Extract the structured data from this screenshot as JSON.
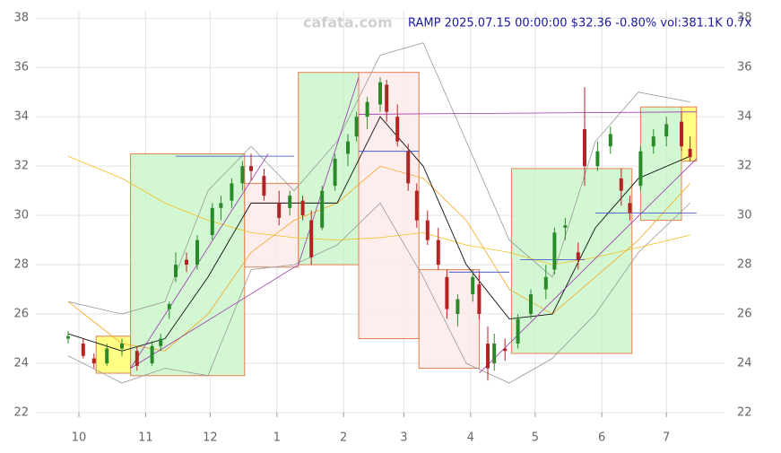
{
  "chart_data": {
    "type": "candlestick",
    "title": "RAMP 2025.07.15 00:00:00 $32.36 -0.80% vol:381.1K 0.7x",
    "watermark": "cafata.com",
    "xlim": [
      -20,
      300
    ],
    "xticks": [
      {
        "value": 0,
        "label": "10"
      },
      {
        "value": 31,
        "label": "11"
      },
      {
        "value": 61,
        "label": "12"
      },
      {
        "value": 92,
        "label": "1"
      },
      {
        "value": 123,
        "label": "2"
      },
      {
        "value": 151,
        "label": "3"
      },
      {
        "value": 182,
        "label": "4"
      },
      {
        "value": 212,
        "label": "5"
      },
      {
        "value": 243,
        "label": "6"
      },
      {
        "value": 273,
        "label": "7"
      }
    ],
    "ylim": [
      22,
      38.3
    ],
    "yticks": [
      22,
      24,
      26,
      28,
      30,
      32,
      34,
      36,
      38
    ],
    "grid": true,
    "up_color": "#2a8a2a",
    "down_color": "#b52222",
    "candles": {
      "x": [
        -5,
        2,
        7,
        13,
        20,
        27,
        34,
        38,
        42,
        45,
        50,
        55,
        62,
        66,
        71,
        76,
        80,
        86,
        93,
        98,
        104,
        108,
        113,
        119,
        125,
        129,
        134,
        140,
        143,
        148,
        153,
        157,
        162,
        167,
        171,
        176,
        183,
        186,
        190,
        193,
        198,
        204,
        210,
        217,
        221,
        226,
        232,
        235,
        241,
        247,
        252,
        256,
        261,
        267,
        273,
        280,
        284
      ],
      "open": [
        25.0,
        24.8,
        24.2,
        24.0,
        24.6,
        24.5,
        24.0,
        24.7,
        26.2,
        27.5,
        28.2,
        28.0,
        29.2,
        30.3,
        30.6,
        31.3,
        32.0,
        31.6,
        30.5,
        30.3,
        30.6,
        29.8,
        29.5,
        31.2,
        32.5,
        33.2,
        34.0,
        34.5,
        35.3,
        34.0,
        32.6,
        31.0,
        29.8,
        29.0,
        27.5,
        26.0,
        26.8,
        27.2,
        24.8,
        24.0,
        24.6,
        24.8,
        26.0,
        27.0,
        27.8,
        29.5,
        28.5,
        33.5,
        32.0,
        32.8,
        31.5,
        30.5,
        31.2,
        32.8,
        33.2,
        33.8,
        32.7
      ],
      "high": [
        25.3,
        25.0,
        24.4,
        24.8,
        25.0,
        24.7,
        24.9,
        25.2,
        26.5,
        28.5,
        28.5,
        29.2,
        30.5,
        30.8,
        31.5,
        32.2,
        32.5,
        31.9,
        31.0,
        31.0,
        30.8,
        30.2,
        31.2,
        32.5,
        33.3,
        34.2,
        34.8,
        35.6,
        35.5,
        34.5,
        32.9,
        31.3,
        30.2,
        29.5,
        27.8,
        26.8,
        27.8,
        27.6,
        25.5,
        25.2,
        25.0,
        26.0,
        27.0,
        28.0,
        29.5,
        29.9,
        28.9,
        35.2,
        33.0,
        33.6,
        31.9,
        30.8,
        32.8,
        33.5,
        34.0,
        34.2,
        33.2
      ],
      "low": [
        24.8,
        24.2,
        23.8,
        23.9,
        24.3,
        23.7,
        23.9,
        24.5,
        25.8,
        27.3,
        27.7,
        27.8,
        29.0,
        29.8,
        30.3,
        31.0,
        31.4,
        30.6,
        29.6,
        30.0,
        29.8,
        28.0,
        29.4,
        31.0,
        32.0,
        33.0,
        33.5,
        34.2,
        33.8,
        32.8,
        31.0,
        29.5,
        28.8,
        27.8,
        25.8,
        25.5,
        26.5,
        25.8,
        23.3,
        23.7,
        24.1,
        24.6,
        25.8,
        26.6,
        27.6,
        29.0,
        27.8,
        31.2,
        31.8,
        32.5,
        30.4,
        29.8,
        31.0,
        32.5,
        32.8,
        32.6,
        32.2
      ],
      "close": [
        25.1,
        24.3,
        24.0,
        24.6,
        24.8,
        23.9,
        24.7,
        25.0,
        26.4,
        28.0,
        28.0,
        29.0,
        30.3,
        30.5,
        31.3,
        32.0,
        31.8,
        30.8,
        29.9,
        30.8,
        30.0,
        28.3,
        31.0,
        32.3,
        33.0,
        34.0,
        34.6,
        35.4,
        34.2,
        33.0,
        31.3,
        29.8,
        29.0,
        28.0,
        26.2,
        26.6,
        27.5,
        26.0,
        23.8,
        24.8,
        24.5,
        25.8,
        26.8,
        27.5,
        29.3,
        29.6,
        28.2,
        32.0,
        32.6,
        33.3,
        31.0,
        30.1,
        32.6,
        33.2,
        33.7,
        32.8,
        32.36
      ]
    },
    "overlay_x": [
      -5,
      20,
      40,
      60,
      80,
      100,
      120,
      140,
      160,
      180,
      200,
      220,
      240,
      260,
      284
    ],
    "overlays": [
      {
        "color": "#999999",
        "values": [
          26.5,
          26.0,
          26.5,
          31.0,
          32.8,
          31.0,
          33.0,
          36.5,
          37.0,
          33.0,
          29.0,
          27.5,
          33.0,
          35.0,
          34.6
        ]
      },
      {
        "color": "#999999",
        "values": [
          24.3,
          23.2,
          23.8,
          23.5,
          27.8,
          28.0,
          28.8,
          30.5,
          27.5,
          24.0,
          23.2,
          24.2,
          26.0,
          28.5,
          30.5
        ]
      },
      {
        "color": "#f0c020",
        "values": [
          32.4,
          31.5,
          30.5,
          29.8,
          29.3,
          29.1,
          29.0,
          29.1,
          29.3,
          28.8,
          28.5,
          28.0,
          28.3,
          28.7,
          29.2
        ]
      },
      {
        "color": "#f5a623",
        "values": [
          26.5,
          24.8,
          24.5,
          26.0,
          28.5,
          29.8,
          30.5,
          32.0,
          31.5,
          29.8,
          27.0,
          26.0,
          27.5,
          29.0,
          31.3
        ]
      },
      {
        "color": "#111111",
        "values": [
          25.2,
          24.5,
          25.0,
          27.5,
          30.5,
          30.5,
          30.5,
          34.0,
          32.0,
          28.0,
          25.8,
          26.0,
          29.5,
          31.5,
          32.4
        ]
      }
    ],
    "boxes": [
      {
        "x0": 8,
        "x1": 24,
        "y0": 23.6,
        "y1": 25.1,
        "color": "#ffff66"
      },
      {
        "x0": 24,
        "x1": 77,
        "y0": 23.5,
        "y1": 32.5,
        "color": "#c8f5c8"
      },
      {
        "x0": 77,
        "x1": 102,
        "y0": 27.9,
        "y1": 31.3,
        "color": "#fde8e8"
      },
      {
        "x0": 102,
        "x1": 130,
        "y0": 28.0,
        "y1": 35.8,
        "color": "#c8f5c8"
      },
      {
        "x0": 130,
        "x1": 158,
        "y0": 25.0,
        "y1": 35.8,
        "color": "#fde8e8"
      },
      {
        "x0": 158,
        "x1": 186,
        "y0": 23.8,
        "y1": 27.8,
        "color": "#fde8e8"
      },
      {
        "x0": 201,
        "x1": 257,
        "y0": 24.4,
        "y1": 31.9,
        "color": "#c8f5c8"
      },
      {
        "x0": 261,
        "x1": 280,
        "y0": 29.8,
        "y1": 34.4,
        "color": "#c8f5c8"
      },
      {
        "x0": 280,
        "x1": 287,
        "y0": 32.2,
        "y1": 34.4,
        "color": "#ffff66"
      }
    ],
    "trendlines": [
      {
        "x0": 24,
        "y0": 23.8,
        "x1": 102,
        "y1": 28.0,
        "color": "#9933aa"
      },
      {
        "x0": 24,
        "y0": 23.8,
        "x1": 88,
        "y1": 32.5,
        "color": "#9933aa"
      },
      {
        "x0": 102,
        "y0": 28.0,
        "x1": 130,
        "y1": 35.6,
        "color": "#9933aa"
      },
      {
        "x0": 130,
        "y0": 34.1,
        "x1": 287,
        "y1": 34.2,
        "color": "#9933aa"
      },
      {
        "x0": 186,
        "y0": 23.6,
        "x1": 287,
        "y1": 32.3,
        "color": "#9933aa"
      },
      {
        "x0": 45,
        "y0": 32.4,
        "x1": 100,
        "y1": 32.4,
        "color": "#3344cc"
      },
      {
        "x0": 130,
        "y0": 32.6,
        "x1": 158,
        "y1": 32.6,
        "color": "#3344cc"
      },
      {
        "x0": 172,
        "y0": 27.7,
        "x1": 200,
        "y1": 27.7,
        "color": "#3344cc"
      },
      {
        "x0": 205,
        "y0": 28.2,
        "x1": 235,
        "y1": 28.2,
        "color": "#3344cc"
      },
      {
        "x0": 240,
        "y0": 30.1,
        "x1": 287,
        "y1": 30.1,
        "color": "#3344cc"
      }
    ]
  }
}
